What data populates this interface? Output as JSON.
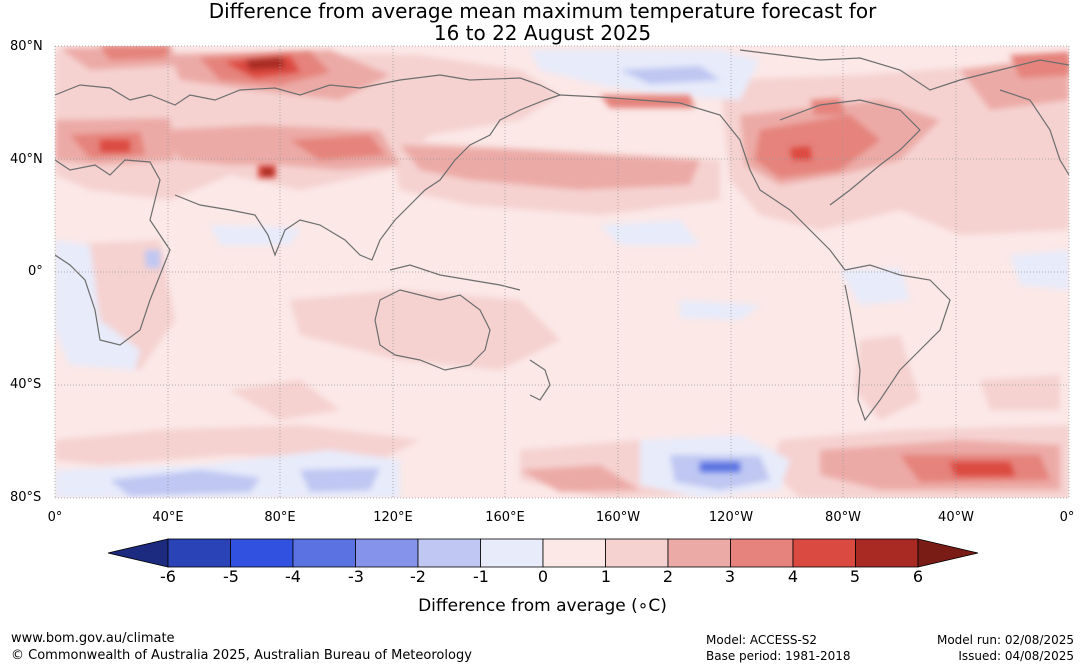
{
  "title_line1": "Difference from average mean maximum temperature forecast for",
  "title_line2": "16 to 22 August 2025",
  "lat_labels": [
    "80°N",
    "40°N",
    "0°",
    "40°S",
    "80°S"
  ],
  "lon_labels": [
    "0°",
    "40°E",
    "80°E",
    "120°E",
    "160°E",
    "160°W",
    "120°W",
    "80°W",
    "40°W",
    "0°"
  ],
  "colorbar": {
    "title": "Difference from average (∘C)",
    "ticks": [
      "-6",
      "-5",
      "-4",
      "-3",
      "-2",
      "-1",
      "0",
      "1",
      "2",
      "3",
      "4",
      "5",
      "6"
    ],
    "colors": [
      "#1c2a80",
      "#2a44b8",
      "#3152e0",
      "#5a72e2",
      "#8594ea",
      "#bfc7f2",
      "#e8ebfa",
      "#fbe8e7",
      "#f5d2d0",
      "#ecaaa6",
      "#e5837c",
      "#db4a40",
      "#a82a22",
      "#7a1c16"
    ]
  },
  "footer": {
    "website": "www.bom.gov.au/climate",
    "copyright": "© Commonwealth of Australia 2025, Australian Bureau of Meteorology",
    "model": "Model: ACCESS-S2",
    "base_period": "Base period: 1981-2018",
    "model_run": "Model run: 02/08/2025",
    "issued": "Issued: 04/08/2025"
  }
}
